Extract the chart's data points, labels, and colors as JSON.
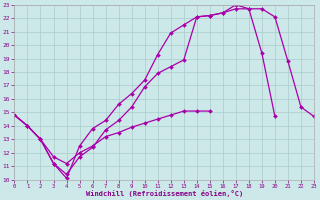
{
  "background_color": "#cce8e8",
  "grid_color": "#aacccc",
  "line_color": "#aa00aa",
  "marker": "D",
  "markersize": 2,
  "linewidth": 0.9,
  "xlabel": "Windchill (Refroidissement éolien,°C)",
  "xlim": [
    0,
    23
  ],
  "ylim": [
    10,
    23
  ],
  "xticks": [
    0,
    1,
    2,
    3,
    4,
    5,
    6,
    7,
    8,
    9,
    10,
    11,
    12,
    13,
    14,
    15,
    16,
    17,
    18,
    19,
    20,
    21,
    22,
    23
  ],
  "yticks": [
    10,
    11,
    12,
    13,
    14,
    15,
    16,
    17,
    18,
    19,
    20,
    21,
    22,
    23
  ],
  "line1_x": [
    0,
    1,
    2,
    3,
    4,
    5,
    6,
    7,
    8,
    9,
    10,
    11,
    12,
    13,
    14,
    15,
    16,
    17,
    18,
    19,
    20,
    21,
    22,
    23
  ],
  "line1_y": [
    14.8,
    14.0,
    13.0,
    11.2,
    10.1,
    12.5,
    13.8,
    14.4,
    15.6,
    16.4,
    17.4,
    19.3,
    20.9,
    21.5,
    22.1,
    22.2,
    22.4,
    23.0,
    22.7,
    22.7,
    22.1,
    18.8,
    15.4,
    14.7
  ],
  "line2_x": [
    0,
    1,
    2,
    3,
    4,
    5,
    6,
    7,
    8,
    9,
    10,
    11,
    12,
    13,
    14,
    15,
    16,
    17,
    18,
    19,
    20
  ],
  "line2_y": [
    14.8,
    14.0,
    13.0,
    11.2,
    10.4,
    11.7,
    12.4,
    13.7,
    14.4,
    15.4,
    16.9,
    17.9,
    18.4,
    18.9,
    22.1,
    22.2,
    22.4,
    22.7,
    22.7,
    19.4,
    14.7
  ],
  "line3_x": [
    0,
    1,
    2,
    3,
    4,
    5,
    6,
    7,
    8,
    9,
    10,
    11,
    12,
    13,
    14,
    15,
    16,
    17,
    18,
    19,
    20,
    21,
    22,
    23
  ],
  "line3_y": [
    14.8,
    14.0,
    13.0,
    11.7,
    11.2,
    12.0,
    12.5,
    13.2,
    13.5,
    13.9,
    14.2,
    14.5,
    14.8,
    15.1,
    15.1,
    15.1,
    null,
    null,
    null,
    null,
    null,
    null,
    null,
    null
  ]
}
